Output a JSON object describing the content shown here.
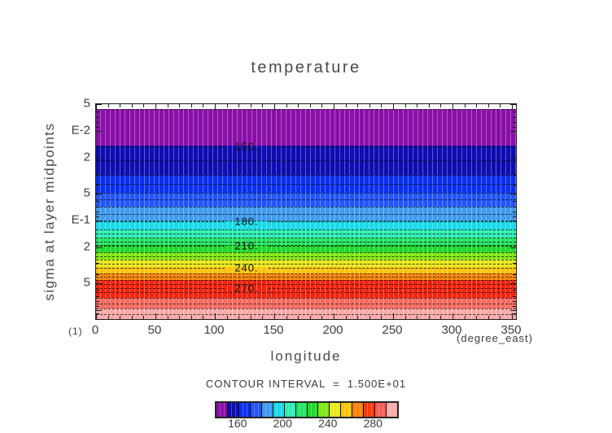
{
  "title": "temperature",
  "axes": {
    "ylabel": "sigma at layer midpoints",
    "xlabel": "longitude",
    "x_unit": "(degree_east)",
    "footnote": "(1)",
    "x_ticks": [
      {
        "label": "0",
        "deg": 0
      },
      {
        "label": "50",
        "deg": 50
      },
      {
        "label": "100",
        "deg": 100
      },
      {
        "label": "150",
        "deg": 150
      },
      {
        "label": "200",
        "deg": 200
      },
      {
        "label": "250",
        "deg": 250
      },
      {
        "label": "300",
        "deg": 300
      },
      {
        "label": "350",
        "deg": 350
      }
    ],
    "x_minor_step_deg": 10,
    "y_ticks": [
      {
        "label": "5",
        "f": 0.0
      },
      {
        "label": "E-2",
        "f": 0.125
      },
      {
        "label": "2",
        "f": 0.25
      },
      {
        "label": "5",
        "f": 0.416
      },
      {
        "label": "E-1",
        "f": 0.541
      },
      {
        "label": "2",
        "f": 0.666
      },
      {
        "label": "5",
        "f": 0.832
      },
      {
        "label": "",
        "f": 0.957
      }
    ],
    "y_minor_ticks_f": [
      0.033,
      0.061,
      0.085,
      0.106,
      0.324,
      0.376,
      0.449,
      0.477,
      0.501,
      0.522,
      0.739,
      0.791,
      0.865,
      0.893,
      0.917,
      0.938,
      0.975
    ]
  },
  "chart_data": {
    "type": "heatmap",
    "subtype": "filled-contour",
    "title": "temperature",
    "xlabel": "longitude (degree_east)",
    "ylabel": "sigma at layer midpoints",
    "x_range_deg": [
      0,
      356
    ],
    "sigma_range": [
      0.005,
      1.27
    ],
    "sigma_axis_reversed_log": true,
    "temperature_levels": [
      140,
      150,
      160,
      170,
      180,
      190,
      200,
      210,
      220,
      230,
      240,
      250,
      260,
      270,
      280,
      290,
      300
    ],
    "contour_interval": 15.0,
    "bands": [
      {
        "value_from": 140,
        "value_to": 150,
        "color": "#8A0FA8",
        "f_from": 0.0227,
        "f_to": 0.1932
      },
      {
        "value_from": 150,
        "value_to": 160,
        "color": "#0D0DB0",
        "f_from": 0.1932,
        "f_to": 0.3295
      },
      {
        "value_from": 160,
        "value_to": 170,
        "color": "#0A2FEE",
        "f_from": 0.3295,
        "f_to": 0.4129
      },
      {
        "value_from": 170,
        "value_to": 180,
        "color": "#2255FF",
        "f_from": 0.4129,
        "f_to": 0.4773
      },
      {
        "value_from": 180,
        "value_to": 190,
        "color": "#3E9AEF",
        "f_from": 0.4773,
        "f_to": 0.5417
      },
      {
        "value_from": 190,
        "value_to": 200,
        "color": "#19D9E8",
        "f_from": 0.5417,
        "f_to": 0.5833
      },
      {
        "value_from": 200,
        "value_to": 210,
        "color": "#2BEFB4",
        "f_from": 0.5833,
        "f_to": 0.6212
      },
      {
        "value_from": 210,
        "value_to": 220,
        "color": "#24E463",
        "f_from": 0.6212,
        "f_to": 0.6553
      },
      {
        "value_from": 220,
        "value_to": 230,
        "color": "#1ED92B",
        "f_from": 0.6553,
        "f_to": 0.6894
      },
      {
        "value_from": 230,
        "value_to": 240,
        "color": "#7FE812",
        "f_from": 0.6894,
        "f_to": 0.7235
      },
      {
        "value_from": 240,
        "value_to": 250,
        "color": "#E8E81C",
        "f_from": 0.7235,
        "f_to": 0.7576
      },
      {
        "value_from": 250,
        "value_to": 260,
        "color": "#FFC408",
        "f_from": 0.7576,
        "f_to": 0.7879
      },
      {
        "value_from": 260,
        "value_to": 270,
        "color": "#FF8207",
        "f_from": 0.7879,
        "f_to": 0.8182
      },
      {
        "value_from": 270,
        "value_to": 280,
        "color": "#F5230E",
        "f_from": 0.8182,
        "f_to": 0.9015
      },
      {
        "value_from": 280,
        "value_to": 290,
        "color": "#FC6A60",
        "f_from": 0.9015,
        "f_to": 0.9508
      },
      {
        "value_from": 290,
        "value_to": 300,
        "color": "#FFA9A9",
        "f_from": 0.9508,
        "f_to": 1.0
      }
    ],
    "contour_lines_f": [
      0.0227,
      0.2614,
      0.3295,
      0.3712,
      0.4129,
      0.4432,
      0.4773,
      0.5114,
      0.5417,
      0.5833,
      0.6023,
      0.6212,
      0.6402,
      0.6553,
      0.6894,
      0.7064,
      0.7235,
      0.7405,
      0.7879,
      0.803,
      0.8182,
      0.8371,
      0.875,
      0.9015,
      0.9261,
      0.9508,
      0.9754
    ],
    "contour_labels": [
      {
        "text": "150.",
        "f": 0.197
      },
      {
        "text": "180.",
        "f": 0.5455
      },
      {
        "text": "210.",
        "f": 0.6591
      },
      {
        "text": "240.",
        "f": 0.7595
      },
      {
        "text": "270.",
        "f": 0.8561
      }
    ]
  },
  "legend": {
    "title": "CONTOUR INTERVAL  =  1.500E+01",
    "colors": [
      "#8A0FA8",
      "#0D0DB0",
      "#0A2FEE",
      "#2255FF",
      "#3E9AEF",
      "#19D9E8",
      "#2BEFB4",
      "#24E463",
      "#1ED92B",
      "#7FE812",
      "#E8E81C",
      "#FFC408",
      "#FF8207",
      "#FF3A0A",
      "#FA5D55",
      "#FFA9A9"
    ],
    "tick_labels": [
      {
        "text": "160",
        "f": 0.125
      },
      {
        "text": "200",
        "f": 0.375
      },
      {
        "text": "240",
        "f": 0.625
      },
      {
        "text": "280",
        "f": 0.875
      }
    ]
  }
}
